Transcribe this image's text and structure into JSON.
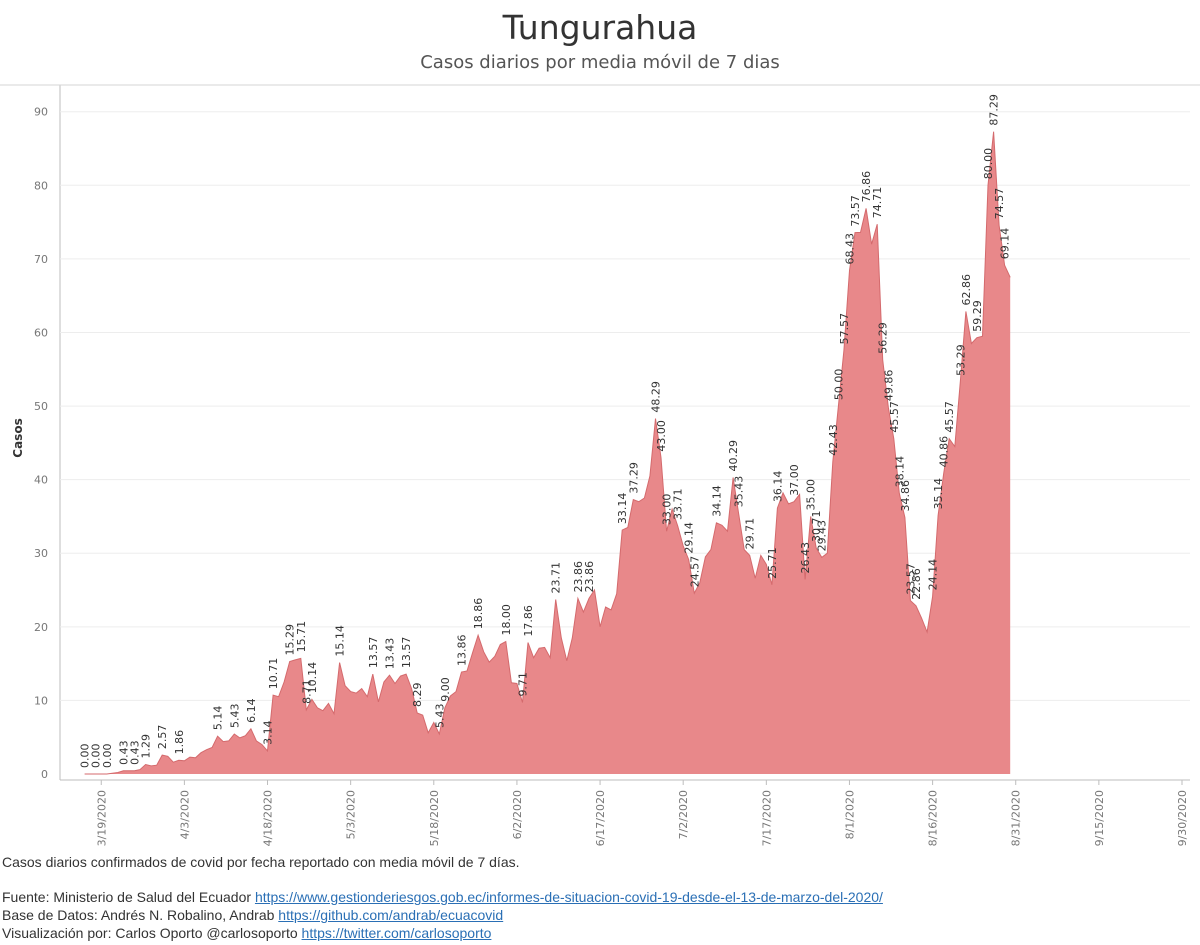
{
  "chart_data": {
    "type": "area",
    "title": "Tungurahua",
    "subtitle": "Casos diarios por media móvil de 7 dias",
    "ylabel": "Casos",
    "xlabel": "",
    "ylim": [
      0,
      92
    ],
    "yticks": [
      0,
      10,
      20,
      30,
      40,
      50,
      60,
      70,
      80,
      90
    ],
    "x_start_date": "3/13/2020",
    "x_end_date": "9/30/2020",
    "xticks": [
      {
        "label": "3/19/2020",
        "day": 6
      },
      {
        "label": "4/3/2020",
        "day": 21
      },
      {
        "label": "4/18/2020",
        "day": 36
      },
      {
        "label": "5/3/2020",
        "day": 51
      },
      {
        "label": "5/18/2020",
        "day": 66
      },
      {
        "label": "6/2/2020",
        "day": 81
      },
      {
        "label": "6/17/2020",
        "day": 96
      },
      {
        "label": "7/2/2020",
        "day": 111
      },
      {
        "label": "7/17/2020",
        "day": 126
      },
      {
        "label": "8/1/2020",
        "day": 141
      },
      {
        "label": "8/16/2020",
        "day": 156
      },
      {
        "label": "8/31/2020",
        "day": 171
      },
      {
        "label": "9/15/2020",
        "day": 186
      },
      {
        "label": "9/30/2020",
        "day": 201
      }
    ],
    "fill_color": "#e8888a",
    "line_color": "#d46a6d",
    "series": [
      {
        "name": "Casos diarios (media móvil 7 días)",
        "points": [
          [
            3,
            0
          ],
          [
            5,
            0
          ],
          [
            7,
            0
          ],
          [
            8,
            0.1
          ],
          [
            9,
            0.2
          ],
          [
            10,
            0.43
          ],
          [
            12,
            0.43
          ],
          [
            13,
            0.6
          ],
          [
            14,
            1.29
          ],
          [
            15,
            1.1
          ],
          [
            16,
            1.2
          ],
          [
            17,
            2.57
          ],
          [
            18,
            2.4
          ],
          [
            19,
            1.6
          ],
          [
            20,
            1.86
          ],
          [
            21,
            1.8
          ],
          [
            22,
            2.3
          ],
          [
            23,
            2.2
          ],
          [
            24,
            2.9
          ],
          [
            25,
            3.3
          ],
          [
            26,
            3.6
          ],
          [
            27,
            5.14
          ],
          [
            28,
            4.4
          ],
          [
            29,
            4.5
          ],
          [
            30,
            5.43
          ],
          [
            31,
            4.9
          ],
          [
            32,
            5.2
          ],
          [
            33,
            6.14
          ],
          [
            34,
            4.5
          ],
          [
            35,
            4.0
          ],
          [
            36,
            3.14
          ],
          [
            37,
            10.71
          ],
          [
            38,
            10.5
          ],
          [
            39,
            12.5
          ],
          [
            40,
            15.29
          ],
          [
            41,
            15.5
          ],
          [
            42,
            15.71
          ],
          [
            43,
            8.71
          ],
          [
            44,
            10.14
          ],
          [
            45,
            9.0
          ],
          [
            46,
            8.6
          ],
          [
            47,
            9.6
          ],
          [
            48,
            8.2
          ],
          [
            49,
            15.14
          ],
          [
            50,
            12.0
          ],
          [
            51,
            11.2
          ],
          [
            52,
            11.0
          ],
          [
            53,
            11.6
          ],
          [
            54,
            10.5
          ],
          [
            55,
            13.57
          ],
          [
            56,
            9.8
          ],
          [
            57,
            12.5
          ],
          [
            58,
            13.43
          ],
          [
            59,
            12.3
          ],
          [
            60,
            13.3
          ],
          [
            61,
            13.57
          ],
          [
            62,
            11.6
          ],
          [
            63,
            8.29
          ],
          [
            64,
            8.0
          ],
          [
            65,
            5.6
          ],
          [
            66,
            7.0
          ],
          [
            67,
            5.43
          ],
          [
            68,
            9.0
          ],
          [
            69,
            10.6
          ],
          [
            70,
            11.2
          ],
          [
            71,
            13.86
          ],
          [
            72,
            14.0
          ],
          [
            73,
            16.5
          ],
          [
            74,
            18.86
          ],
          [
            75,
            16.6
          ],
          [
            76,
            15.2
          ],
          [
            77,
            16.0
          ],
          [
            78,
            17.6
          ],
          [
            79,
            18.0
          ],
          [
            80,
            12.4
          ],
          [
            81,
            12.3
          ],
          [
            82,
            9.71
          ],
          [
            83,
            17.86
          ],
          [
            84,
            15.8
          ],
          [
            85,
            17.1
          ],
          [
            86,
            17.2
          ],
          [
            87,
            15.8
          ],
          [
            88,
            23.71
          ],
          [
            89,
            18.5
          ],
          [
            90,
            15.4
          ],
          [
            91,
            18.5
          ],
          [
            92,
            23.86
          ],
          [
            93,
            22.0
          ],
          [
            94,
            23.86
          ],
          [
            95,
            25.0
          ],
          [
            96,
            20.0
          ],
          [
            97,
            22.7
          ],
          [
            98,
            22.3
          ],
          [
            99,
            24.5
          ],
          [
            100,
            33.14
          ],
          [
            101,
            33.5
          ],
          [
            102,
            37.29
          ],
          [
            103,
            37.0
          ],
          [
            104,
            37.5
          ],
          [
            105,
            40.5
          ],
          [
            106,
            48.29
          ],
          [
            107,
            43.0
          ],
          [
            108,
            33.0
          ],
          [
            109,
            36.0
          ],
          [
            110,
            33.71
          ],
          [
            111,
            31.0
          ],
          [
            112,
            29.14
          ],
          [
            113,
            24.57
          ],
          [
            114,
            26.0
          ],
          [
            115,
            29.5
          ],
          [
            116,
            30.5
          ],
          [
            117,
            34.14
          ],
          [
            118,
            33.8
          ],
          [
            119,
            33.0
          ],
          [
            120,
            40.29
          ],
          [
            121,
            35.43
          ],
          [
            122,
            30.5
          ],
          [
            123,
            29.71
          ],
          [
            124,
            26.6
          ],
          [
            125,
            29.71
          ],
          [
            126,
            28.5
          ],
          [
            127,
            25.71
          ],
          [
            128,
            36.14
          ],
          [
            129,
            38.2
          ],
          [
            130,
            36.7
          ],
          [
            131,
            37.0
          ],
          [
            132,
            38.0
          ],
          [
            133,
            26.43
          ],
          [
            134,
            35.0
          ],
          [
            135,
            30.71
          ],
          [
            136,
            29.43
          ],
          [
            137,
            30.0
          ],
          [
            138,
            42.43
          ],
          [
            139,
            50.0
          ],
          [
            140,
            57.57
          ],
          [
            141,
            68.43
          ],
          [
            142,
            73.57
          ],
          [
            143,
            73.6
          ],
          [
            144,
            76.86
          ],
          [
            145,
            72.0
          ],
          [
            146,
            74.71
          ],
          [
            147,
            56.29
          ],
          [
            148,
            49.86
          ],
          [
            149,
            45.57
          ],
          [
            150,
            38.14
          ],
          [
            151,
            34.86
          ],
          [
            152,
            23.57
          ],
          [
            153,
            22.86
          ],
          [
            154,
            21.2
          ],
          [
            155,
            19.3
          ],
          [
            156,
            24.14
          ],
          [
            157,
            35.14
          ],
          [
            158,
            40.86
          ],
          [
            159,
            45.57
          ],
          [
            160,
            44.5
          ],
          [
            161,
            53.29
          ],
          [
            162,
            62.86
          ],
          [
            163,
            58.5
          ],
          [
            164,
            59.29
          ],
          [
            165,
            59.5
          ],
          [
            166,
            80.0
          ],
          [
            167,
            87.29
          ],
          [
            168,
            74.57
          ],
          [
            169,
            69.14
          ],
          [
            170,
            67.5
          ]
        ]
      }
    ],
    "data_labels": [
      {
        "day": 3,
        "value": 0,
        "text": "0.00"
      },
      {
        "day": 5,
        "value": 0,
        "text": "0.00"
      },
      {
        "day": 7,
        "value": 0,
        "text": "0.00"
      },
      {
        "day": 10,
        "value": 0.43,
        "text": "0.43"
      },
      {
        "day": 12,
        "value": 0.43,
        "text": "0.43"
      },
      {
        "day": 14,
        "value": 1.29,
        "text": "1.29"
      },
      {
        "day": 17,
        "value": 2.57,
        "text": "2.57"
      },
      {
        "day": 20,
        "value": 1.86,
        "text": "1.86"
      },
      {
        "day": 27,
        "value": 5.14,
        "text": "5.14"
      },
      {
        "day": 30,
        "value": 5.43,
        "text": "5.43"
      },
      {
        "day": 33,
        "value": 6.14,
        "text": "6.14"
      },
      {
        "day": 36,
        "value": 3.14,
        "text": "3.14"
      },
      {
        "day": 37,
        "value": 10.71,
        "text": "10.71"
      },
      {
        "day": 40,
        "value": 15.29,
        "text": "15.29"
      },
      {
        "day": 42,
        "value": 15.71,
        "text": "15.71"
      },
      {
        "day": 43,
        "value": 8.71,
        "text": "8.71"
      },
      {
        "day": 44,
        "value": 10.14,
        "text": "10.14"
      },
      {
        "day": 49,
        "value": 15.14,
        "text": "15.14"
      },
      {
        "day": 55,
        "value": 13.57,
        "text": "13.57"
      },
      {
        "day": 58,
        "value": 13.43,
        "text": "13.43"
      },
      {
        "day": 61,
        "value": 13.57,
        "text": "13.57"
      },
      {
        "day": 63,
        "value": 8.29,
        "text": "8.29"
      },
      {
        "day": 67,
        "value": 5.43,
        "text": "5.43"
      },
      {
        "day": 68,
        "value": 9.0,
        "text": "9.00"
      },
      {
        "day": 71,
        "value": 13.86,
        "text": "13.86"
      },
      {
        "day": 74,
        "value": 18.86,
        "text": "18.86"
      },
      {
        "day": 79,
        "value": 18.0,
        "text": "18.00"
      },
      {
        "day": 82,
        "value": 9.71,
        "text": "9.71"
      },
      {
        "day": 83,
        "value": 17.86,
        "text": "17.86"
      },
      {
        "day": 88,
        "value": 23.71,
        "text": "23.71"
      },
      {
        "day": 92,
        "value": 23.86,
        "text": "23.86"
      },
      {
        "day": 94,
        "value": 23.86,
        "text": "23.86"
      },
      {
        "day": 100,
        "value": 33.14,
        "text": "33.14"
      },
      {
        "day": 102,
        "value": 37.29,
        "text": "37.29"
      },
      {
        "day": 106,
        "value": 48.29,
        "text": "48.29"
      },
      {
        "day": 107,
        "value": 43.0,
        "text": "43.00"
      },
      {
        "day": 108,
        "value": 33.0,
        "text": "33.00"
      },
      {
        "day": 110,
        "value": 33.71,
        "text": "33.71"
      },
      {
        "day": 112,
        "value": 29.14,
        "text": "29.14"
      },
      {
        "day": 113,
        "value": 24.57,
        "text": "24.57"
      },
      {
        "day": 117,
        "value": 34.14,
        "text": "34.14"
      },
      {
        "day": 120,
        "value": 40.29,
        "text": "40.29"
      },
      {
        "day": 121,
        "value": 35.43,
        "text": "35.43"
      },
      {
        "day": 123,
        "value": 29.71,
        "text": "29.71"
      },
      {
        "day": 127,
        "value": 25.71,
        "text": "25.71"
      },
      {
        "day": 128,
        "value": 36.14,
        "text": "36.14"
      },
      {
        "day": 131,
        "value": 37.0,
        "text": "37.00"
      },
      {
        "day": 133,
        "value": 26.43,
        "text": "26.43"
      },
      {
        "day": 134,
        "value": 35.0,
        "text": "35.00"
      },
      {
        "day": 135,
        "value": 30.71,
        "text": "30.71"
      },
      {
        "day": 136,
        "value": 29.43,
        "text": "29.43"
      },
      {
        "day": 138,
        "value": 42.43,
        "text": "42.43"
      },
      {
        "day": 139,
        "value": 50.0,
        "text": "50.00"
      },
      {
        "day": 140,
        "value": 57.57,
        "text": "57.57"
      },
      {
        "day": 141,
        "value": 68.43,
        "text": "68.43"
      },
      {
        "day": 142,
        "value": 73.57,
        "text": "73.57"
      },
      {
        "day": 144,
        "value": 76.86,
        "text": "76.86"
      },
      {
        "day": 146,
        "value": 74.71,
        "text": "74.71"
      },
      {
        "day": 147,
        "value": 56.29,
        "text": "56.29"
      },
      {
        "day": 148,
        "value": 49.86,
        "text": "49.86"
      },
      {
        "day": 149,
        "value": 45.57,
        "text": "45.57"
      },
      {
        "day": 150,
        "value": 38.14,
        "text": "38.14"
      },
      {
        "day": 151,
        "value": 34.86,
        "text": "34.86"
      },
      {
        "day": 152,
        "value": 23.57,
        "text": "23.57"
      },
      {
        "day": 153,
        "value": 22.86,
        "text": "22.86"
      },
      {
        "day": 156,
        "value": 24.14,
        "text": "24.14"
      },
      {
        "day": 157,
        "value": 35.14,
        "text": "35.14"
      },
      {
        "day": 158,
        "value": 40.86,
        "text": "40.86"
      },
      {
        "day": 159,
        "value": 45.57,
        "text": "45.57"
      },
      {
        "day": 161,
        "value": 53.29,
        "text": "53.29"
      },
      {
        "day": 162,
        "value": 62.86,
        "text": "62.86"
      },
      {
        "day": 164,
        "value": 59.29,
        "text": "59.29"
      },
      {
        "day": 166,
        "value": 80.0,
        "text": "80.00"
      },
      {
        "day": 167,
        "value": 87.29,
        "text": "87.29"
      },
      {
        "day": 168,
        "value": 74.57,
        "text": "74.57"
      },
      {
        "day": 169,
        "value": 69.14,
        "text": "69.14"
      }
    ]
  },
  "footer": {
    "note": "Casos diarios confirmados de covid por fecha reportado con media móvil de 7 días.",
    "source_label": "Fuente: Ministerio de Salud del Ecuador ",
    "source_link": "https://www.gestionderiesgos.gob.ec/informes-de-situacion-covid-19-desde-el-13-de-marzo-del-2020/",
    "data_label": "Base de Datos: Andrés N. Robalino, Andrab ",
    "data_link": "https://github.com/andrab/ecuacovid",
    "viz_label": "Visualización por: Carlos Oporto @carlosoporto ",
    "viz_link": "https://twitter.com/carlosoporto"
  }
}
